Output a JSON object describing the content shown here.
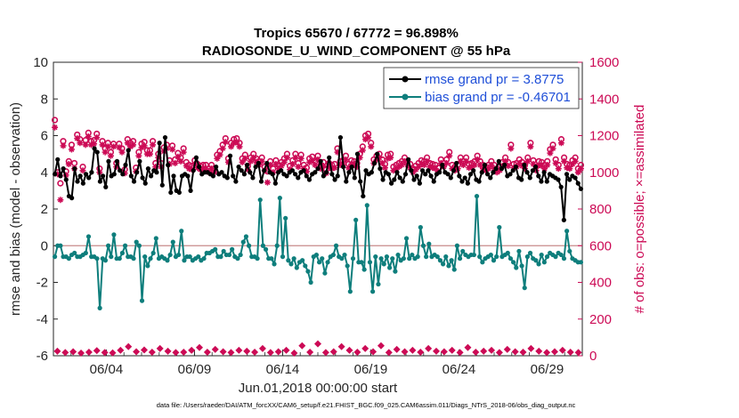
{
  "chart_data": {
    "type": "line",
    "title": "Tropics 65670 / 67772 = 96.898%",
    "subtitle": "RADIOSONDE_U_WIND_COMPONENT @ 55 hPa",
    "xlabel": "Jun.01,2018 00:00:00 start",
    "ylabel": "rmse and bias (model - observation)",
    "ylabel_right": "# of obs: o=possible; ×=assimilated",
    "footnote": "data file: /Users/raeder/DAI/ATM_forcXX/CAM6_setup/f.e21.FHIST_BGC.f09_025.CAM6assim.011/Diags_NTrS_2018-06/obs_diag_output.nc",
    "xlim": [
      0,
      30
    ],
    "ylim": [
      -6,
      10
    ],
    "ylim_right": [
      0,
      1600
    ],
    "yticks": [
      "-6",
      "-4",
      "-2",
      "0",
      "2",
      "4",
      "6",
      "8",
      "10"
    ],
    "yticks_right": [
      "0",
      "200",
      "400",
      "600",
      "800",
      "1000",
      "1200",
      "1400",
      "1600"
    ],
    "xticks": [
      {
        "x": 3,
        "label": "06/04"
      },
      {
        "x": 8,
        "label": "06/09"
      },
      {
        "x": 13,
        "label": "06/14"
      },
      {
        "x": 18,
        "label": "06/19"
      },
      {
        "x": 23,
        "label": "06/24"
      },
      {
        "x": 28,
        "label": "06/29"
      }
    ],
    "legend": [
      {
        "name": "rmse grand pr = 3.8775",
        "color": "#000000"
      },
      {
        "name": "bias grand pr = -0.46701",
        "color": "#0e7e7c"
      }
    ],
    "legend_position": "top-right",
    "zero_line_color": "#c88a8a",
    "colors": {
      "rmse": "#000000",
      "bias": "#0e7e7c",
      "obs": "#cc0a55"
    },
    "series": [
      {
        "name": "rmse",
        "values": [
          3.9,
          4.7,
          3.8,
          4.2,
          3.6,
          2.7,
          2.6,
          4.2,
          3.5,
          3.8,
          3.4,
          3.9,
          3.7,
          4.0,
          5.3,
          5.1,
          3.5,
          3.8,
          3.2,
          4.6,
          3.8,
          3.9,
          4.6,
          4.1,
          3.9,
          4.4,
          5.2,
          3.8,
          3.5,
          4.0,
          4.6,
          3.7,
          3.4,
          4.2,
          3.8,
          4.1,
          4.0,
          5.6,
          3.3,
          5.9,
          4.4,
          2.9,
          3.8,
          3.0,
          2.9,
          3.8,
          3.9,
          3.8,
          3.0,
          4.1,
          4.8,
          4.3,
          3.9,
          4.0,
          4.0,
          3.9,
          3.8,
          4.3,
          3.9,
          4.0,
          3.8,
          3.7,
          4.9,
          3.8,
          3.5,
          4.3,
          4.1,
          3.9,
          4.4,
          4.0,
          3.7,
          4.3,
          4.5,
          3.5,
          4.1,
          4.5,
          4.0,
          3.9,
          3.4,
          4.0,
          4.1,
          3.9,
          3.8,
          4.0,
          4.1,
          3.9,
          3.7,
          4.0,
          4.1,
          3.8,
          3.6,
          3.9,
          4.0,
          4.2,
          4.6,
          3.8,
          4.0,
          4.8,
          3.9,
          3.6,
          3.8,
          5.9,
          4.3,
          3.5,
          4.0,
          4.3,
          3.7,
          5.0,
          3.5,
          2.7,
          4.1,
          3.9,
          4.0,
          4.5,
          5.0,
          4.2,
          3.6,
          4.0,
          3.9,
          3.4,
          3.6,
          4.0,
          3.7,
          3.5,
          3.9,
          4.7,
          4.1,
          3.6,
          3.8,
          3.4,
          4.1,
          3.9,
          4.1,
          3.8,
          3.5,
          3.9,
          4.0,
          4.4,
          4.0,
          3.9,
          3.7,
          4.1,
          4.5,
          3.8,
          3.5,
          3.7,
          3.4,
          3.9,
          4.1,
          3.6,
          3.5,
          4.0,
          4.4,
          3.9,
          3.7,
          4.0,
          4.2,
          4.6,
          4.2,
          4.4,
          3.8,
          3.9,
          4.1,
          4.3,
          3.7,
          3.6,
          4.4,
          4.0,
          3.7,
          4.1,
          4.3,
          3.8,
          3.5,
          4.0,
          3.5,
          3.9,
          3.8,
          3.7,
          3.6,
          3.2,
          1.4,
          3.9,
          3.6,
          3.8,
          3.7,
          3.4,
          3.1
        ],
        "description": "rmse (model - observation), 6-hourly"
      },
      {
        "name": "bias",
        "values": [
          -0.6,
          0.0,
          0.0,
          -0.6,
          -0.6,
          -0.7,
          -0.5,
          -0.4,
          -0.6,
          -0.6,
          -0.5,
          -0.4,
          0.5,
          -0.6,
          -0.6,
          -0.7,
          -3.4,
          -0.7,
          -0.8,
          0.0,
          -0.6,
          0.6,
          -0.7,
          -0.7,
          -0.4,
          0.0,
          -0.6,
          -0.6,
          -0.7,
          0.2,
          0.0,
          -3.0,
          -0.6,
          -1.1,
          -0.7,
          -0.4,
          0.4,
          -0.7,
          -0.6,
          -0.7,
          -0.8,
          -0.5,
          0.2,
          -0.6,
          -0.5,
          0.8,
          -0.8,
          -0.6,
          -0.6,
          -0.8,
          -0.7,
          -0.6,
          -0.8,
          -0.7,
          -0.4,
          -0.4,
          -0.3,
          -0.2,
          -0.6,
          -0.6,
          -0.3,
          -0.5,
          -0.5,
          -0.2,
          -0.6,
          -0.7,
          -0.5,
          0.2,
          0.5,
          0.0,
          -0.6,
          -0.6,
          -0.7,
          2.5,
          0.0,
          -0.2,
          -0.7,
          -0.7,
          -1.0,
          0.0,
          2.6,
          -0.6,
          1.5,
          -0.8,
          -1.0,
          -0.7,
          -1.2,
          -0.9,
          -0.8,
          -1.1,
          -1.4,
          -2.0,
          -0.6,
          -0.5,
          -0.9,
          -0.7,
          -1.5,
          -0.9,
          -0.6,
          -0.5,
          0.0,
          -0.6,
          -0.7,
          -0.5,
          -1.1,
          -2.5,
          -0.7,
          1.4,
          -0.9,
          -0.9,
          -1.3,
          2.2,
          -0.9,
          -2.5,
          -0.6,
          -2.1,
          -0.7,
          -1.0,
          -0.6,
          -1.2,
          -0.7,
          -1.4,
          -0.5,
          -0.8,
          -0.7,
          0.4,
          -0.7,
          -0.5,
          -0.7,
          -0.6,
          1.0,
          0.0,
          -0.6,
          0.1,
          -0.6,
          -0.5,
          -0.6,
          -0.8,
          -1.0,
          -0.6,
          -1.1,
          -0.8,
          -1.3,
          0.0,
          -0.7,
          -0.3,
          -0.5,
          -0.6,
          -0.5,
          -0.5,
          2.7,
          -0.6,
          -0.9,
          -0.7,
          -0.6,
          -0.5,
          -0.8,
          -0.6,
          1.0,
          -0.6,
          -0.5,
          -0.4,
          -0.7,
          -0.9,
          -1.2,
          -0.3,
          -1.1,
          -2.3,
          -0.6,
          -0.4,
          -0.7,
          -0.8,
          -1.0,
          -0.5,
          -0.9,
          -0.6,
          -0.4,
          -0.5,
          -0.6,
          -0.4,
          -0.5,
          -0.7,
          0.8,
          -0.3,
          -0.7,
          -0.8,
          -0.9,
          -0.9
        ],
        "description": "bias (model - observation), 6-hourly"
      },
      {
        "name": "obs possible (o)",
        "axis": "right",
        "values": [
          1285,
          1000,
          940,
          1170,
          1005,
          1060,
          1150,
          1050,
          1205,
          1180,
          1030,
          1175,
          1215,
          1170,
          1175,
          1210,
          1020,
          1170,
          1130,
          1160,
          1110,
          1155,
          1050,
          1155,
          1130,
          1015,
          1180,
          1160,
          1170,
          1025,
          1110,
          1155,
          1165,
          1120,
          1120,
          1170,
          1050,
          1100,
          1050,
          1135,
          1150,
          1065,
          1145,
          1070,
          1105,
          1080,
          1130,
          1055,
          1040,
          1035,
          1065,
          1045,
          1035,
          1040,
          1040,
          1020,
          1040,
          1020,
          1095,
          1115,
          1150,
          1185,
          1075,
          1160,
          1180,
          1185,
          1160,
          1075,
          1095,
          1035,
          1080,
          1100,
          1075,
          1060,
          1080,
          1030,
          1005,
          1060,
          1020,
          1065,
          1040,
          1055,
          1075,
          1100,
          1035,
          1065,
          1100,
          1050,
          1095,
          1040,
          1025,
          1075,
          1085,
          1060,
          1090,
          1040,
          1055,
          1015,
          1050,
          1040,
          1045,
          1130,
          1060,
          1065,
          1090,
          1045,
          1065,
          1060,
          1050,
          1100,
          1140,
          1200,
          1210,
          1160,
          1070,
          1090,
          1100,
          1070,
          1045,
          1095,
          1100,
          1030,
          1040,
          1050,
          1060,
          1080,
          1060,
          1045,
          1020,
          1035,
          1050,
          1065,
          1060,
          1080,
          1050,
          1045,
          1040,
          1025,
          1070,
          1050,
          1070,
          1110,
          1040,
          1030,
          1040,
          1080,
          1060,
          1080,
          1045,
          1050,
          1060,
          1090,
          1060,
          1040,
          1030,
          1040,
          1060,
          1040,
          1020,
          1030,
          1055,
          1080,
          1055,
          1150,
          1045,
          1050,
          1070,
          1055,
          1040,
          1080,
          1160,
          1065,
          1030,
          1060,
          1055,
          1040,
          1060,
          1125,
          1150,
          1070,
          1040,
          1180,
          1080,
          1045,
          1040,
          1065,
          1080,
          1020,
          1040
        ],
        "description": "number of possible observations, right axis"
      },
      {
        "name": "obs assimilated (×)",
        "axis": "right",
        "values": [
          1245,
          990,
          850,
          1145,
          985,
          1045,
          1125,
          1020,
          1185,
          1160,
          1010,
          1150,
          1195,
          1150,
          1155,
          1190,
          1000,
          1150,
          1110,
          1140,
          1090,
          1140,
          1030,
          1135,
          1110,
          995,
          1160,
          1140,
          1150,
          1005,
          1090,
          1135,
          1145,
          1100,
          1100,
          1150,
          1030,
          1080,
          1030,
          1115,
          1130,
          1045,
          1125,
          1050,
          1085,
          1060,
          1110,
          1035,
          1020,
          1015,
          1045,
          1025,
          1015,
          1020,
          1020,
          1000,
          1020,
          1000,
          1075,
          1095,
          1130,
          1165,
          1055,
          1140,
          1160,
          1165,
          1140,
          1055,
          1075,
          1015,
          1060,
          1080,
          1055,
          1040,
          1060,
          1010,
          945,
          1040,
          1000,
          1045,
          1020,
          1035,
          1055,
          1080,
          1015,
          1045,
          1080,
          1030,
          1075,
          1020,
          1005,
          1055,
          1065,
          1040,
          1070,
          1020,
          1035,
          995,
          1030,
          1020,
          1025,
          1110,
          1040,
          1045,
          1070,
          1025,
          1045,
          1040,
          1030,
          1080,
          1120,
          1180,
          1190,
          1140,
          1050,
          1070,
          1080,
          1050,
          1025,
          1075,
          1080,
          1010,
          1020,
          1030,
          1040,
          1060,
          1040,
          1025,
          1000,
          1015,
          1030,
          1045,
          1040,
          1060,
          1030,
          1025,
          1020,
          1005,
          1050,
          1030,
          1050,
          1090,
          1020,
          1010,
          1020,
          1060,
          1040,
          1060,
          1025,
          1030,
          1040,
          1070,
          1040,
          1020,
          1010,
          1020,
          1040,
          1020,
          1000,
          1010,
          1035,
          1060,
          1035,
          1130,
          1025,
          1030,
          1050,
          1035,
          1020,
          1060,
          1140,
          1045,
          1010,
          1040,
          1035,
          1020,
          1040,
          1105,
          1130,
          1050,
          1020,
          1160,
          1060,
          1025,
          1020,
          1045,
          1060,
          1000,
          1020
        ],
        "description": "number of assimilated observations, right axis"
      },
      {
        "name": "obs near zero (o)",
        "axis": "right",
        "values": [
          15,
          8,
          12,
          5,
          10,
          18,
          8,
          6,
          20,
          40,
          12,
          22,
          10,
          30,
          15,
          8,
          10,
          20,
          35,
          10,
          25,
          12,
          8,
          20,
          15,
          10,
          30,
          8,
          12,
          20,
          5,
          45,
          10,
          55,
          8,
          12,
          40,
          20,
          10,
          30,
          12,
          45,
          8,
          25,
          12,
          20,
          10,
          30,
          15,
          12,
          20,
          8,
          35,
          10,
          15,
          20,
          8,
          25,
          12,
          10,
          30,
          15,
          8,
          12,
          20,
          10,
          8
        ],
        "description": "near-zero possible obs markers along bottom"
      }
    ]
  }
}
